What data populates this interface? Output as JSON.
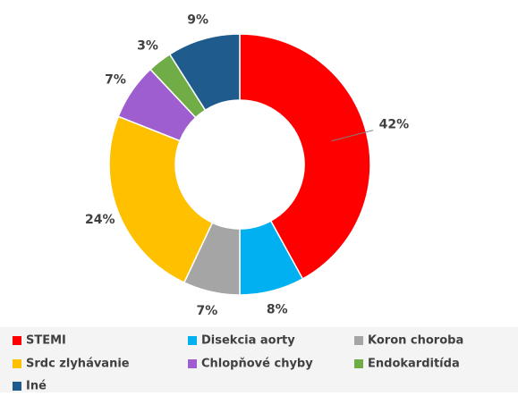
{
  "chart_data": {
    "type": "donut",
    "categories": [
      "STEMI",
      "Disekcia aorty",
      "Koron choroba",
      "Srdc zlyhávanie",
      "Chlopňové chyby",
      "Endokarditída",
      "Iné"
    ],
    "values": [
      42,
      8,
      7,
      24,
      7,
      3,
      9
    ],
    "value_labels": [
      "42%",
      "8%",
      "7%",
      "24%",
      "7%",
      "3%",
      "9%"
    ],
    "colors": [
      "#ff0000",
      "#00b0f0",
      "#a5a5a5",
      "#ffc000",
      "#9e5ecf",
      "#70ad47",
      "#1f5b8c"
    ]
  }
}
